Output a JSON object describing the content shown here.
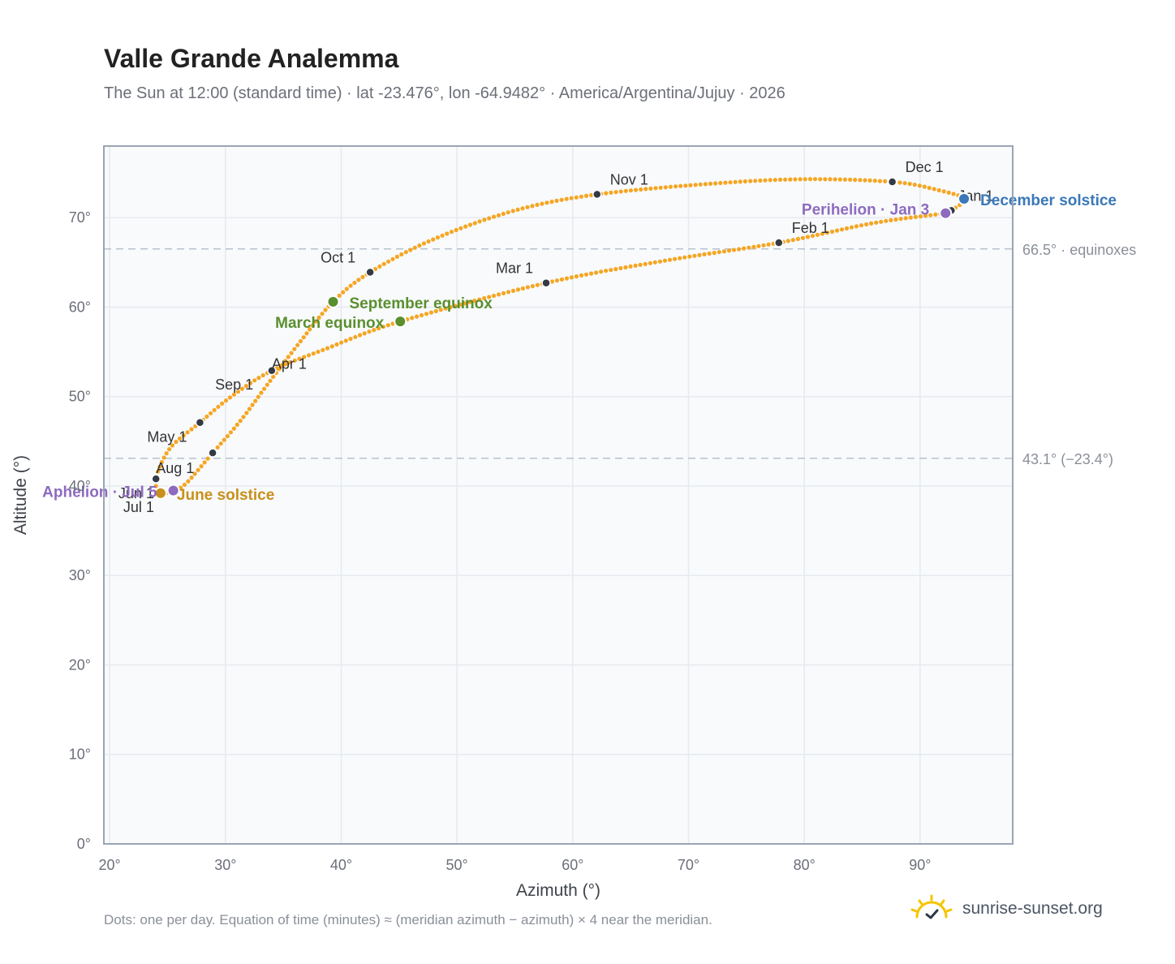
{
  "header": {
    "title": "Valle Grande Analemma",
    "subtitle": "The Sun at 12:00 (standard time) · lat -23.476°, lon -64.9482° · America/Argentina/Jujuy · 2026"
  },
  "footer": {
    "note": "Dots: one per day. Equation of time (minutes) ≈ (meridian azimuth − azimuth) × 4 near the meridian.",
    "brand": "sunrise-sunset.org",
    "brand_icon": "sun-logo-icon"
  },
  "colors": {
    "path": "#f5a623",
    "month_marker": "#333a45",
    "equinox": "#5a8f2e",
    "june_solstice": "#c8901c",
    "december_solstice": "#3a78b8",
    "apsis": "#8e6bbf",
    "grid": "#e6e9ee",
    "reference_line": "#b8c2cf",
    "plot_bg": "#f8fafc",
    "frame": "#9aa5b4"
  },
  "chart_data": {
    "type": "scatter",
    "xlabel": "Azimuth (°)",
    "ylabel": "Altitude (°)",
    "xlim": [
      19.5,
      98
    ],
    "ylim": [
      0,
      78
    ],
    "x_ticks": [
      "20°",
      "30°",
      "40°",
      "50°",
      "60°",
      "70°",
      "80°",
      "90°"
    ],
    "x_tick_values": [
      20,
      30,
      40,
      50,
      60,
      70,
      80,
      90
    ],
    "y_ticks": [
      "0°",
      "10°",
      "20°",
      "30°",
      "40°",
      "50°",
      "60°",
      "70°"
    ],
    "y_tick_values": [
      0,
      10,
      20,
      30,
      40,
      50,
      60,
      70
    ],
    "grid": true,
    "reference_lines": [
      {
        "y": 66.5,
        "label": "66.5° · equinoxes"
      },
      {
        "y": 43.1,
        "label": "43.1° (−23.4°)"
      }
    ],
    "path_anchors": [
      {
        "x": 92.7,
        "y": 70.8
      },
      {
        "x": 92.2,
        "y": 70.5
      },
      {
        "x": 86.0,
        "y": 69.4
      },
      {
        "x": 77.8,
        "y": 67.2
      },
      {
        "x": 68.0,
        "y": 65.2
      },
      {
        "x": 57.7,
        "y": 62.7
      },
      {
        "x": 45.1,
        "y": 58.4
      },
      {
        "x": 38.6,
        "y": 55.3
      },
      {
        "x": 34.0,
        "y": 52.9
      },
      {
        "x": 30.5,
        "y": 50.0
      },
      {
        "x": 27.8,
        "y": 47.1
      },
      {
        "x": 25.2,
        "y": 44.2
      },
      {
        "x": 24.0,
        "y": 40.8
      },
      {
        "x": 24.4,
        "y": 39.2
      },
      {
        "x": 25.5,
        "y": 39.5
      },
      {
        "x": 26.6,
        "y": 40.3
      },
      {
        "x": 28.9,
        "y": 43.7
      },
      {
        "x": 31.3,
        "y": 47.3
      },
      {
        "x": 33.6,
        "y": 51.3
      },
      {
        "x": 36.5,
        "y": 56.2
      },
      {
        "x": 39.3,
        "y": 60.6
      },
      {
        "x": 42.5,
        "y": 63.9
      },
      {
        "x": 48.0,
        "y": 67.6
      },
      {
        "x": 55.0,
        "y": 70.8
      },
      {
        "x": 62.1,
        "y": 72.6
      },
      {
        "x": 72.0,
        "y": 73.8
      },
      {
        "x": 80.0,
        "y": 74.3
      },
      {
        "x": 87.6,
        "y": 74.0
      },
      {
        "x": 91.5,
        "y": 73.1
      },
      {
        "x": 93.8,
        "y": 72.1
      },
      {
        "x": 92.7,
        "y": 70.8
      }
    ],
    "month_markers": [
      {
        "label": "Jan 1",
        "x": 92.7,
        "y": 70.8,
        "anchor": "start",
        "dx": 8,
        "dy": -12
      },
      {
        "label": "Feb 1",
        "x": 77.8,
        "y": 67.2,
        "anchor": "start",
        "dx": 16,
        "dy": -12
      },
      {
        "label": "Mar 1",
        "x": 57.7,
        "y": 62.7,
        "anchor": "end",
        "dx": -16,
        "dy": -12
      },
      {
        "label": "Apr 1",
        "x": 34.0,
        "y": 52.9,
        "anchor": "start",
        "dx": 0,
        "dy": -2
      },
      {
        "label": "May 1",
        "x": 27.8,
        "y": 47.1,
        "anchor": "end",
        "dx": -16,
        "dy": 24
      },
      {
        "label": "Jun 1",
        "x": 24.4,
        "y": 39.2,
        "anchor": "end",
        "dx": -8,
        "dy": 6
      },
      {
        "label": "Jul 1",
        "x": 24.4,
        "y": 39.2,
        "anchor": "end",
        "dx": -8,
        "dy": 23
      },
      {
        "label": "Aug 1",
        "x": 24.0,
        "y": 40.8,
        "anchor": "start",
        "dx": 0,
        "dy": -7
      },
      {
        "label": "Sep 1",
        "x": 28.9,
        "y": 43.7,
        "anchor": "start",
        "dx": 3,
        "dy": -78
      },
      {
        "label": "Oct 1",
        "x": 42.5,
        "y": 63.9,
        "anchor": "end",
        "dx": -18,
        "dy": -12
      },
      {
        "label": "Nov 1",
        "x": 62.1,
        "y": 72.6,
        "anchor": "start",
        "dx": 16,
        "dy": -12
      },
      {
        "label": "Dec 1",
        "x": 87.6,
        "y": 74.0,
        "anchor": "start",
        "dx": 16,
        "dy": -12
      }
    ],
    "events": [
      {
        "label": "March equinox",
        "x": 45.1,
        "y": 58.4,
        "color": "#5a8f2e",
        "anchor": "end",
        "dx": -20,
        "dy": 8
      },
      {
        "label": "September equinox",
        "x": 39.3,
        "y": 60.6,
        "color": "#5a8f2e",
        "anchor": "start",
        "dx": 20,
        "dy": 8
      },
      {
        "label": "June solstice",
        "x": 24.4,
        "y": 39.2,
        "color": "#c8901c",
        "anchor": "start",
        "dx": 20,
        "dy": 8
      },
      {
        "label": "December solstice",
        "x": 93.8,
        "y": 72.1,
        "color": "#3a78b8",
        "anchor": "start",
        "dx": 20,
        "dy": 8
      },
      {
        "label": "Perihelion · Jan 3",
        "x": 92.2,
        "y": 70.5,
        "color": "#8e6bbf",
        "anchor": "end",
        "dx": -20,
        "dy": 2
      },
      {
        "label": "Aphelion · Jul 5",
        "x": 25.5,
        "y": 39.5,
        "color": "#8e6bbf",
        "anchor": "end",
        "dx": -20,
        "dy": 8
      }
    ]
  }
}
